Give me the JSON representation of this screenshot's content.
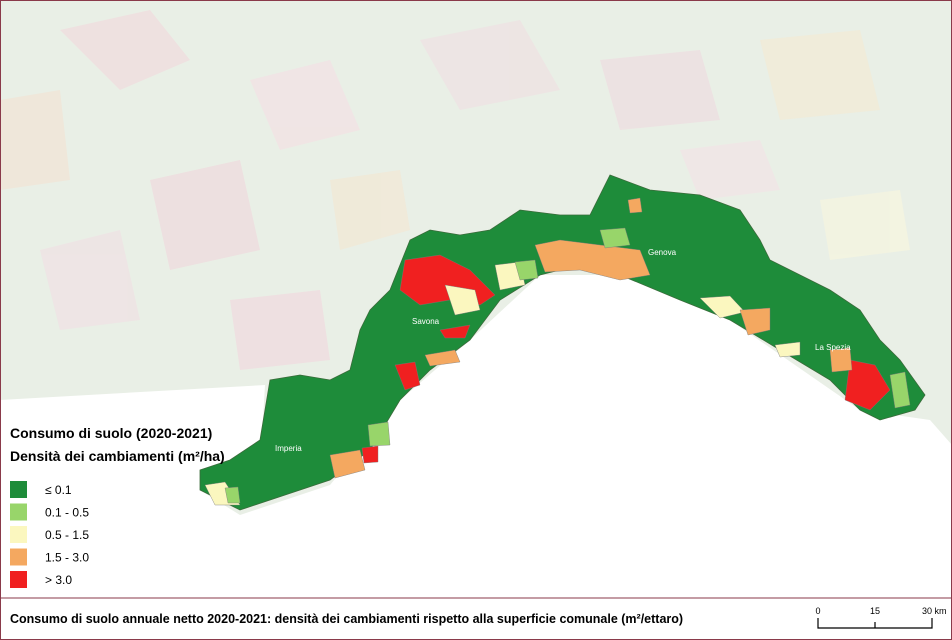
{
  "legend": {
    "title_lines": [
      "Consumo di suolo (2020-2021)",
      "Densità dei cambiamenti (m²/ha)"
    ],
    "items": [
      {
        "label": "≤ 0.1",
        "color": "#1e8c3a"
      },
      {
        "label": "0.1 - 0.5",
        "color": "#98d56a"
      },
      {
        "label": "0.5 - 1.5",
        "color": "#fbf7bf"
      },
      {
        "label": "1.5 - 3.0",
        "color": "#f4a860"
      },
      {
        "label": "> 3.0",
        "color": "#f02020"
      }
    ]
  },
  "places": [
    "Genova",
    "Savona",
    "La Spezia",
    "Imperia"
  ],
  "caption": "Consumo di suolo annuale netto 2020-2021: densità dei cambiamenti rispetto alla superficie comunale (m²/ettaro)",
  "scale_bar": [
    "0",
    "15",
    "30 km"
  ]
}
